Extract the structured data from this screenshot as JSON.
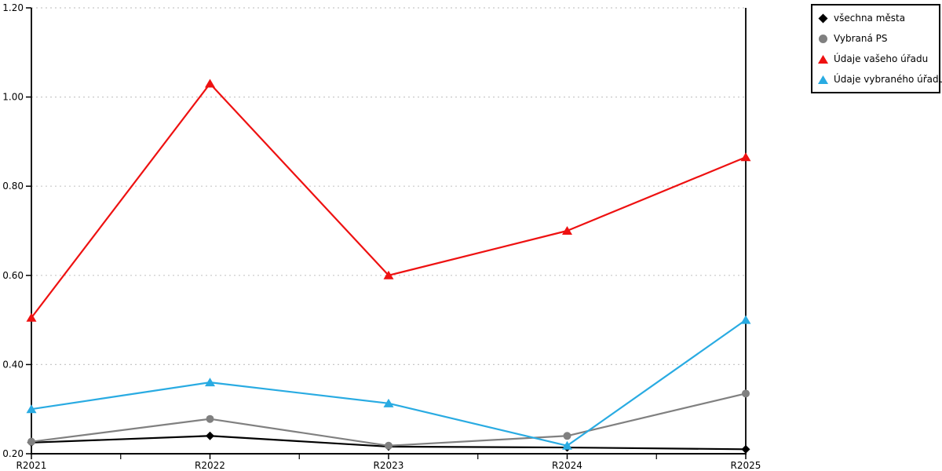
{
  "chart_data": {
    "type": "line",
    "title": "",
    "xlabel": "",
    "ylabel": "",
    "categories": [
      "R2021",
      "R2022",
      "R2023",
      "R2024",
      "R2025"
    ],
    "series": [
      {
        "name": "všechna města",
        "color": "#000000",
        "marker": "diamond",
        "values": [
          0.225,
          0.24,
          0.216,
          0.214,
          0.21
        ]
      },
      {
        "name": "Vybraná PS",
        "color": "#808080",
        "marker": "circle",
        "values": [
          0.227,
          0.278,
          0.218,
          0.24,
          0.335
        ]
      },
      {
        "name": "Údaje vašeho úřadu",
        "color": "#ee1111",
        "marker": "triangle",
        "values": [
          0.505,
          1.03,
          0.6,
          0.7,
          0.865
        ]
      },
      {
        "name": "Údaje vybraného úřadu",
        "color": "#29abe2",
        "marker": "triangle",
        "values": [
          0.3,
          0.36,
          0.313,
          0.218,
          0.5
        ]
      }
    ],
    "ylim": [
      0.2,
      1.2
    ],
    "yticks": [
      "0.20",
      "0.40",
      "0.60",
      "0.80",
      "1.00",
      "1.20"
    ],
    "grid": "horizontal-dashed",
    "grid_color": "#c8c8c8",
    "axis_color": "#000000",
    "background": "#ffffff",
    "legend_position": "top-right"
  }
}
